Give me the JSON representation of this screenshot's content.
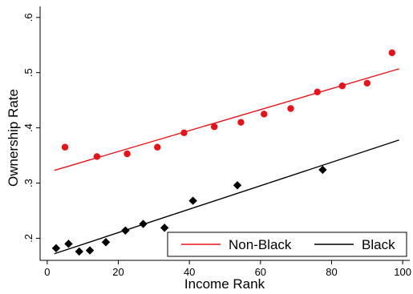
{
  "chart_data": {
    "type": "scatter",
    "title": "",
    "xlabel": "Income Rank",
    "ylabel": "Ownership Rate",
    "xlim": [
      -2,
      102
    ],
    "ylim": [
      0.16,
      0.62
    ],
    "xticks": [
      0,
      20,
      40,
      60,
      80,
      100
    ],
    "yticks": [
      0.2,
      0.3,
      0.4,
      0.5,
      0.6
    ],
    "xtick_labels": [
      "0",
      "20",
      "40",
      "60",
      "80",
      "100"
    ],
    "ytick_labels": [
      ".2",
      ".3",
      ".4",
      ".5",
      ".6"
    ],
    "grid": false,
    "legend_position": "bottom-right",
    "series": [
      {
        "name": "Non-Black",
        "marker": "circle",
        "color": "#e8131a",
        "points": [
          {
            "x": 5,
            "y": 0.365
          },
          {
            "x": 14,
            "y": 0.348
          },
          {
            "x": 22.5,
            "y": 0.353
          },
          {
            "x": 31,
            "y": 0.365
          },
          {
            "x": 38.5,
            "y": 0.391
          },
          {
            "x": 47,
            "y": 0.402
          },
          {
            "x": 54.5,
            "y": 0.41
          },
          {
            "x": 61,
            "y": 0.425
          },
          {
            "x": 68.5,
            "y": 0.435
          },
          {
            "x": 76,
            "y": 0.465
          },
          {
            "x": 83,
            "y": 0.476
          },
          {
            "x": 90,
            "y": 0.481
          },
          {
            "x": 97,
            "y": 0.536
          }
        ],
        "fit": {
          "x0": 2,
          "y0": 0.323,
          "x1": 99,
          "y1": 0.507
        }
      },
      {
        "name": "Black",
        "marker": "diamond",
        "color": "#000000",
        "points": [
          {
            "x": 2.5,
            "y": 0.182
          },
          {
            "x": 6,
            "y": 0.19
          },
          {
            "x": 9,
            "y": 0.176
          },
          {
            "x": 12,
            "y": 0.178
          },
          {
            "x": 16.5,
            "y": 0.193
          },
          {
            "x": 22,
            "y": 0.214
          },
          {
            "x": 27,
            "y": 0.226
          },
          {
            "x": 33,
            "y": 0.219
          },
          {
            "x": 41,
            "y": 0.268
          },
          {
            "x": 53.5,
            "y": 0.296
          },
          {
            "x": 77.5,
            "y": 0.324
          }
        ],
        "fit": {
          "x0": 2,
          "y0": 0.172,
          "x1": 99,
          "y1": 0.378
        }
      }
    ]
  }
}
